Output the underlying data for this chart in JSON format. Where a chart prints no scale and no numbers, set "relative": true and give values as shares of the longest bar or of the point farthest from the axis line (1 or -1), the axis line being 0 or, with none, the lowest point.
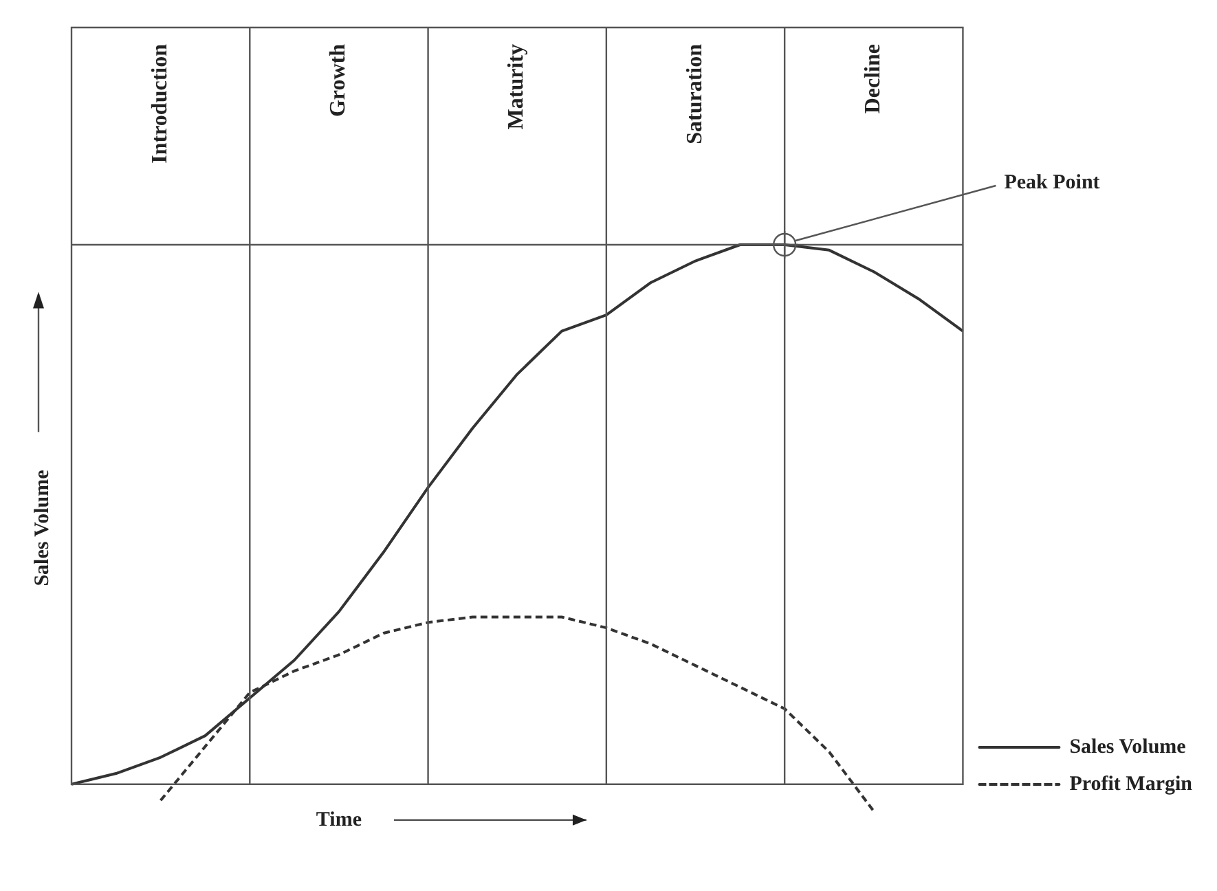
{
  "chart_data": {
    "type": "line",
    "relative": true,
    "xlabel": "Time",
    "ylabel": "Sales Volume",
    "categories": [
      null,
      null,
      null,
      null,
      null,
      null,
      null,
      null,
      null,
      null,
      null,
      null,
      null,
      null,
      null,
      null,
      null,
      null,
      null,
      null,
      null
    ],
    "series": [
      {
        "name": "Sales Volume",
        "color": "#333333",
        "line_style": "solid",
        "values": [
          0,
          0.02,
          0.05,
          0.09,
          0.16,
          0.23,
          0.32,
          0.43,
          0.55,
          0.66,
          0.76,
          0.84,
          0.87,
          0.93,
          0.97,
          1.0,
          1.0,
          0.99,
          0.95,
          0.9,
          0.84
        ]
      },
      {
        "name": "Profit Margin",
        "color": "#333333",
        "line_style": "dashed",
        "values": [
          null,
          null,
          -0.03,
          0.07,
          0.17,
          0.21,
          0.24,
          0.28,
          0.3,
          0.31,
          0.31,
          0.31,
          0.29,
          0.26,
          0.22,
          0.18,
          0.14,
          0.06,
          -0.05,
          null,
          null
        ]
      }
    ],
    "annotations": [
      "Introduction",
      "Growth",
      "Maturity",
      "Saturation",
      "Decline",
      "Peak Point"
    ],
    "legend": "bottom right",
    "grid": "x",
    "marker": "none"
  }
}
